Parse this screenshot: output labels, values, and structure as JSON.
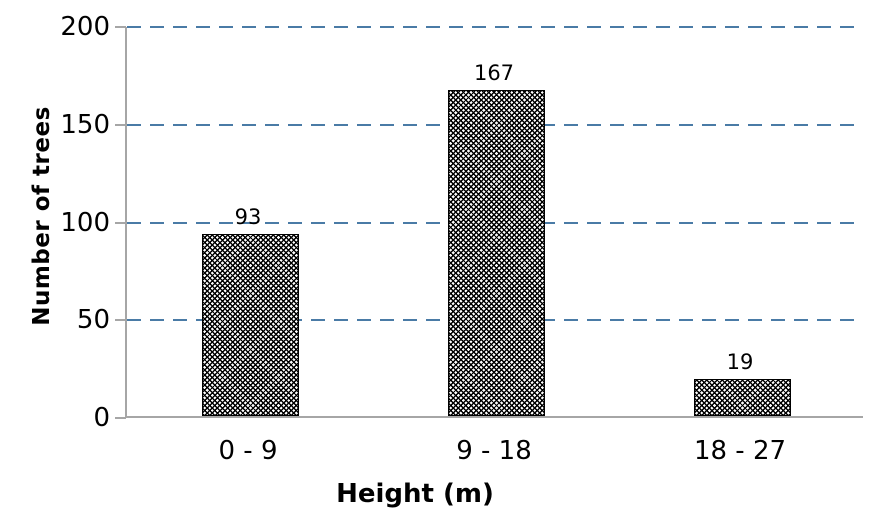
{
  "figure": {
    "background": "#ffffff",
    "text_color": "#000000"
  },
  "chart_data": {
    "type": "bar",
    "categories": [
      "0 - 9",
      "9 - 18",
      "18 - 27"
    ],
    "values": [
      93,
      167,
      19
    ],
    "data_labels": [
      "93",
      "167",
      "19"
    ],
    "title": "",
    "xlabel": "Height (m)",
    "ylabel": "Number of trees",
    "ylim": [
      0,
      200
    ],
    "yticks": [
      0,
      50,
      100,
      150,
      200
    ],
    "grid": {
      "horizontal": true,
      "style": "dashed",
      "color": "#4a7ba6"
    },
    "legend": null,
    "axis_color": "#a6a6a6",
    "bar_fill": {
      "pattern": "diagonal-crosshatch",
      "foreground": "#000000",
      "background": "#ffffff"
    }
  }
}
